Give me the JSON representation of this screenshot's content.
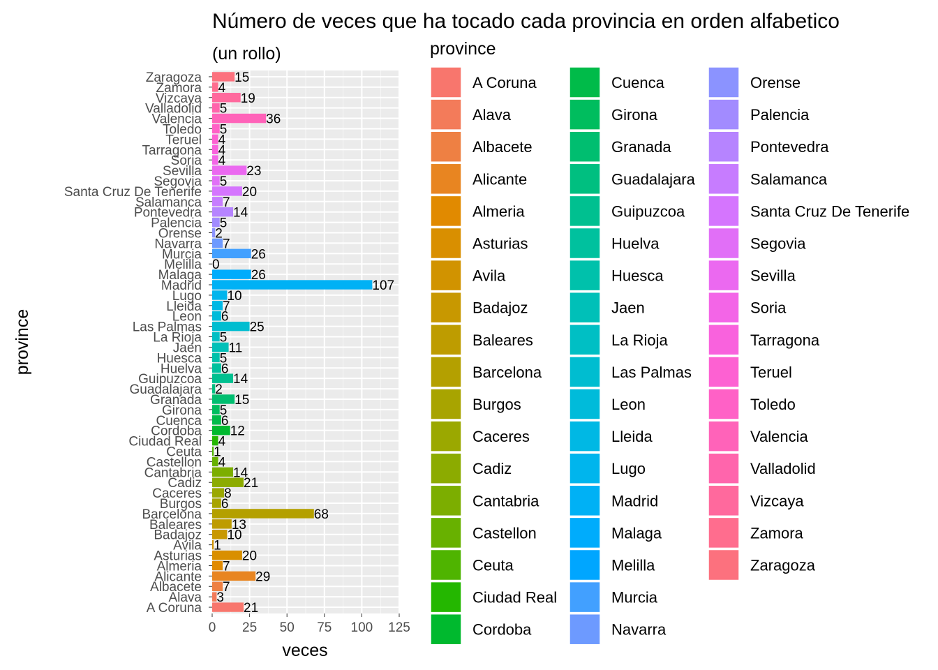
{
  "chart_data": {
    "type": "bar",
    "orientation": "horizontal",
    "title": "Número de veces que ha tocado cada provincia en orden alfabetico",
    "subtitle": "(un rollo)",
    "xlabel": "veces",
    "ylabel": "province",
    "xlim": [
      0,
      125
    ],
    "xticks": [
      "0",
      "25",
      "50",
      "75",
      "100",
      "125"
    ],
    "grid": true,
    "legend": {
      "title": "province",
      "placement": "right",
      "columns": 3
    },
    "categories": [
      "A Coruna",
      "Alava",
      "Albacete",
      "Alicante",
      "Almeria",
      "Asturias",
      "Avila",
      "Badajoz",
      "Baleares",
      "Barcelona",
      "Burgos",
      "Caceres",
      "Cadiz",
      "Cantabria",
      "Castellon",
      "Ceuta",
      "Ciudad Real",
      "Cordoba",
      "Cuenca",
      "Girona",
      "Granada",
      "Guadalajara",
      "Guipuzcoa",
      "Huelva",
      "Huesca",
      "Jaen",
      "La Rioja",
      "Las Palmas",
      "Leon",
      "Lleida",
      "Lugo",
      "Madrid",
      "Malaga",
      "Melilla",
      "Murcia",
      "Navarra",
      "Orense",
      "Palencia",
      "Pontevedra",
      "Salamanca",
      "Santa Cruz De Tenerife",
      "Segovia",
      "Sevilla",
      "Soria",
      "Tarragona",
      "Teruel",
      "Toledo",
      "Valencia",
      "Valladolid",
      "Vizcaya",
      "Zamora",
      "Zaragoza"
    ],
    "values": [
      21,
      3,
      7,
      29,
      7,
      20,
      1,
      10,
      13,
      68,
      6,
      8,
      21,
      14,
      4,
      1,
      4,
      12,
      6,
      5,
      15,
      2,
      14,
      6,
      5,
      11,
      5,
      25,
      6,
      7,
      10,
      107,
      26,
      0,
      26,
      7,
      2,
      5,
      14,
      7,
      20,
      5,
      23,
      4,
      4,
      4,
      5,
      36,
      5,
      19,
      4,
      15
    ],
    "value_labels": [
      "21",
      "3",
      "7",
      "29",
      "7",
      "20",
      "1",
      "10",
      "13",
      "68",
      "6",
      "8",
      "21",
      "14",
      "4",
      "1",
      "4",
      "12",
      "6",
      "5",
      "15",
      "2",
      "14",
      "6",
      "5",
      "11",
      "5",
      "25",
      "6",
      "7",
      "10",
      "107",
      "26",
      "0",
      "26",
      "7",
      "2",
      "5",
      "14",
      "7",
      "20",
      "5",
      "23",
      "4",
      "4",
      "4",
      "5",
      "36",
      "5",
      "19",
      "4",
      "15"
    ],
    "palette": "ggplot2 default hue (52 colors, starting #F8766D)"
  }
}
